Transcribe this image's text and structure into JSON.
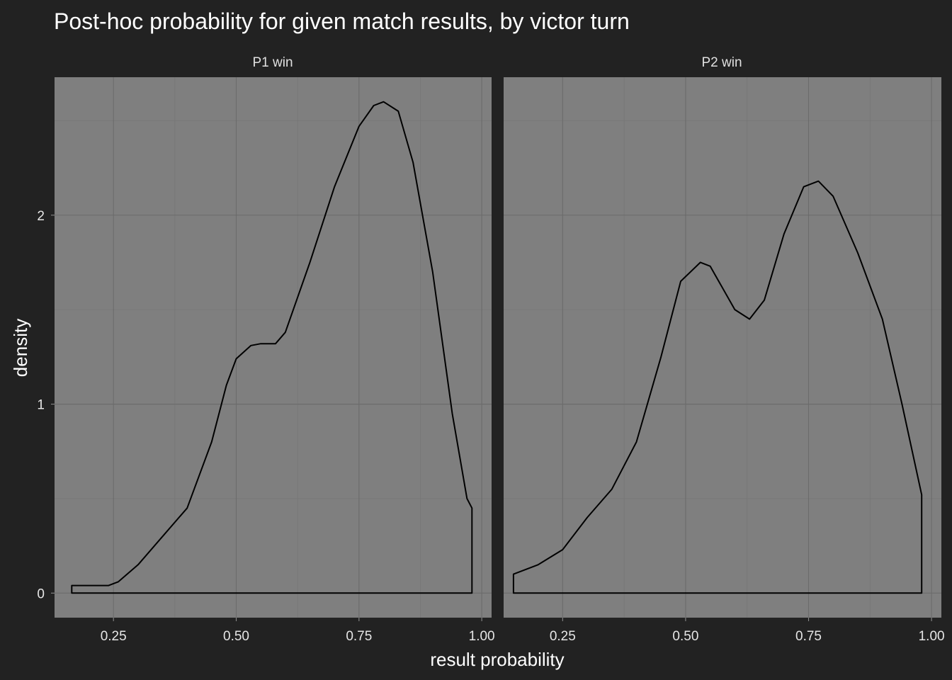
{
  "title": "Post-hoc probability for given match results, by victor turn",
  "chart_data": {
    "type": "area",
    "title": "Post-hoc probability for given match results, by victor turn",
    "xlabel": "result probability",
    "ylabel": "density",
    "xlim": [
      0.13,
      1.02
    ],
    "ylim": [
      -0.13,
      2.73
    ],
    "x_ticks": [
      0.25,
      0.5,
      0.75,
      1.0
    ],
    "x_tick_labels": [
      "0.25",
      "0.50",
      "0.75",
      "1.00"
    ],
    "y_ticks": [
      0,
      1,
      2
    ],
    "y_tick_labels": [
      "0",
      "1",
      "2"
    ],
    "grid": true,
    "facets": [
      {
        "name": "P1 win",
        "x": [
          0.165,
          0.165,
          0.24,
          0.26,
          0.3,
          0.35,
          0.4,
          0.45,
          0.48,
          0.5,
          0.53,
          0.55,
          0.58,
          0.6,
          0.65,
          0.7,
          0.75,
          0.78,
          0.8,
          0.83,
          0.86,
          0.9,
          0.94,
          0.97,
          0.98,
          0.98
        ],
        "y": [
          0,
          0.04,
          0.04,
          0.06,
          0.15,
          0.3,
          0.45,
          0.8,
          1.1,
          1.24,
          1.31,
          1.32,
          1.32,
          1.38,
          1.75,
          2.15,
          2.47,
          2.58,
          2.6,
          2.55,
          2.28,
          1.7,
          0.95,
          0.5,
          0.45,
          0
        ]
      },
      {
        "name": "P2 win",
        "x": [
          0.15,
          0.15,
          0.2,
          0.25,
          0.3,
          0.35,
          0.4,
          0.45,
          0.49,
          0.53,
          0.55,
          0.6,
          0.63,
          0.66,
          0.7,
          0.74,
          0.77,
          0.8,
          0.85,
          0.9,
          0.94,
          0.98,
          0.98
        ],
        "y": [
          0,
          0.1,
          0.15,
          0.23,
          0.4,
          0.55,
          0.8,
          1.25,
          1.65,
          1.75,
          1.73,
          1.5,
          1.45,
          1.55,
          1.9,
          2.15,
          2.18,
          2.1,
          1.8,
          1.45,
          1.0,
          0.52,
          0
        ]
      }
    ]
  }
}
